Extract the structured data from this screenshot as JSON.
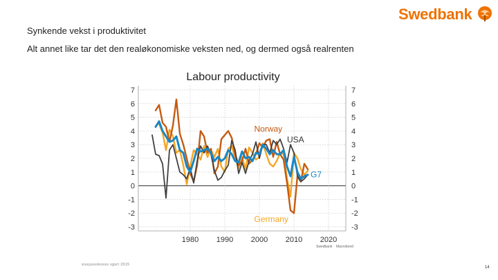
{
  "slide": {
    "title": "Synkende vekst i produktivitet",
    "subtitle": "Alt annet like tar det den realøkonomiske veksten ned, og dermed også realrenten",
    "footer": "sissjsssskssss sgsrt 2015",
    "page_number": "14"
  },
  "logo": {
    "text": "Swedbank",
    "icon": "oak-tree-icon",
    "color": "#ee7203"
  },
  "chart_data": {
    "type": "line",
    "title": "Labour productivity",
    "xlabel": "",
    "ylabel": "",
    "xlim": [
      1965,
      2025
    ],
    "ylim": [
      -3.3,
      7.3
    ],
    "x_ticks": [
      1980,
      1990,
      2000,
      2010,
      2020
    ],
    "y_ticks": [
      7,
      6,
      5,
      4,
      3,
      2,
      1,
      0,
      -1,
      -2,
      -3
    ],
    "grid": true,
    "source": [
      "Swedbank",
      "Macrobond"
    ],
    "series": [
      {
        "name": "Norway",
        "color": "#c55a11",
        "label_position": "middle",
        "points": [
          [
            1970,
            5.5
          ],
          [
            1971,
            5.9
          ],
          [
            1972,
            4.6
          ],
          [
            1973,
            4.3
          ],
          [
            1974,
            3.2
          ],
          [
            1975,
            4.4
          ],
          [
            1976,
            6.3
          ],
          [
            1977,
            3.8
          ],
          [
            1978,
            3.0
          ],
          [
            1979,
            2.0
          ],
          [
            1980,
            0.9
          ],
          [
            1981,
            0.3
          ],
          [
            1982,
            1.5
          ],
          [
            1983,
            4.0
          ],
          [
            1984,
            3.6
          ],
          [
            1985,
            2.4
          ],
          [
            1986,
            2.7
          ],
          [
            1987,
            0.9
          ],
          [
            1988,
            1.4
          ],
          [
            1989,
            3.4
          ],
          [
            1990,
            3.7
          ],
          [
            1991,
            4.0
          ],
          [
            1992,
            3.5
          ],
          [
            1993,
            2.3
          ],
          [
            1994,
            1.5
          ],
          [
            1995,
            1.8
          ],
          [
            1996,
            2.7
          ],
          [
            1997,
            1.6
          ],
          [
            1998,
            1.9
          ],
          [
            1999,
            2.3
          ],
          [
            2000,
            3.1
          ],
          [
            2001,
            2.8
          ],
          [
            2002,
            3.3
          ],
          [
            2003,
            3.4
          ],
          [
            2004,
            2.1
          ],
          [
            2005,
            3.2
          ],
          [
            2006,
            2.3
          ],
          [
            2007,
            1.9
          ],
          [
            2008,
            0.2
          ],
          [
            2009,
            -1.8
          ],
          [
            2010,
            -2.0
          ],
          [
            2011,
            0.7
          ],
          [
            2012,
            0.3
          ],
          [
            2013,
            1.6
          ],
          [
            2014,
            1.2
          ]
        ]
      },
      {
        "name": "USA",
        "color": "#404040",
        "label_position": "middle-right",
        "points": [
          [
            1969,
            3.7
          ],
          [
            1970,
            2.3
          ],
          [
            1971,
            2.2
          ],
          [
            1972,
            1.6
          ],
          [
            1973,
            -0.9
          ],
          [
            1974,
            2.6
          ],
          [
            1975,
            3.0
          ],
          [
            1976,
            2.0
          ],
          [
            1977,
            1.0
          ],
          [
            1978,
            0.8
          ],
          [
            1979,
            0.5
          ],
          [
            1980,
            1.3
          ],
          [
            1981,
            0.2
          ],
          [
            1982,
            1.8
          ],
          [
            1983,
            2.9
          ],
          [
            1984,
            2.4
          ],
          [
            1985,
            2.9
          ],
          [
            1986,
            2.3
          ],
          [
            1987,
            1.1
          ],
          [
            1988,
            0.4
          ],
          [
            1989,
            0.6
          ],
          [
            1990,
            1.1
          ],
          [
            1991,
            1.5
          ],
          [
            1992,
            3.3
          ],
          [
            1993,
            2.6
          ],
          [
            1994,
            0.9
          ],
          [
            1995,
            1.7
          ],
          [
            1996,
            0.9
          ],
          [
            1997,
            1.8
          ],
          [
            1998,
            2.3
          ],
          [
            1999,
            3.2
          ],
          [
            2000,
            2.0
          ],
          [
            2001,
            3.0
          ],
          [
            2002,
            3.0
          ],
          [
            2003,
            2.4
          ],
          [
            2004,
            3.3
          ],
          [
            2005,
            3.0
          ],
          [
            2006,
            3.4
          ],
          [
            2007,
            2.7
          ],
          [
            2008,
            1.7
          ],
          [
            2009,
            3.0
          ],
          [
            2010,
            2.4
          ],
          [
            2011,
            0.7
          ],
          [
            2012,
            0.3
          ],
          [
            2013,
            0.5
          ],
          [
            2014,
            0.8
          ]
        ]
      },
      {
        "name": "Germany",
        "color": "#f5a623",
        "label_position": "bottom",
        "points": [
          [
            1971,
            4.5
          ],
          [
            1972,
            3.9
          ],
          [
            1973,
            2.6
          ],
          [
            1974,
            4.1
          ],
          [
            1975,
            3.6
          ],
          [
            1976,
            2.4
          ],
          [
            1977,
            2.6
          ],
          [
            1978,
            1.5
          ],
          [
            1979,
            0.1
          ],
          [
            1980,
            1.4
          ],
          [
            1981,
            2.6
          ],
          [
            1982,
            2.3
          ],
          [
            1983,
            1.9
          ],
          [
            1984,
            2.9
          ],
          [
            1985,
            2.1
          ],
          [
            1986,
            2.6
          ],
          [
            1987,
            2.1
          ],
          [
            1988,
            2.7
          ],
          [
            1989,
            1.4
          ],
          [
            1990,
            1.0
          ],
          [
            1991,
            2.7
          ],
          [
            1992,
            2.9
          ],
          [
            1993,
            2.0
          ],
          [
            1994,
            1.3
          ],
          [
            1995,
            2.1
          ],
          [
            1996,
            1.2
          ],
          [
            1997,
            2.8
          ],
          [
            1998,
            2.4
          ],
          [
            1999,
            1.9
          ],
          [
            2000,
            2.1
          ],
          [
            2001,
            3.1
          ],
          [
            2002,
            2.3
          ],
          [
            2003,
            1.6
          ],
          [
            2004,
            1.4
          ],
          [
            2005,
            1.8
          ],
          [
            2006,
            2.4
          ],
          [
            2007,
            2.3
          ],
          [
            2008,
            0.5
          ],
          [
            2009,
            -0.8
          ],
          [
            2010,
            2.4
          ],
          [
            2011,
            2.0
          ],
          [
            2012,
            1.2
          ],
          [
            2013,
            0.8
          ],
          [
            2014,
            1.1
          ]
        ]
      },
      {
        "name": "G7",
        "color": "#1a87c4",
        "label_position": "right",
        "points": [
          [
            1970,
            4.3
          ],
          [
            1971,
            4.7
          ],
          [
            1972,
            4.0
          ],
          [
            1973,
            3.6
          ],
          [
            1974,
            3.2
          ],
          [
            1975,
            3.3
          ],
          [
            1976,
            3.6
          ],
          [
            1977,
            2.6
          ],
          [
            1978,
            2.4
          ],
          [
            1979,
            1.4
          ],
          [
            1980,
            1.0
          ],
          [
            1981,
            1.8
          ],
          [
            1982,
            2.7
          ],
          [
            1983,
            2.5
          ],
          [
            1984,
            2.6
          ],
          [
            1985,
            2.7
          ],
          [
            1986,
            2.4
          ],
          [
            1987,
            1.8
          ],
          [
            1988,
            2.1
          ],
          [
            1989,
            1.8
          ],
          [
            1990,
            2.0
          ],
          [
            1991,
            2.6
          ],
          [
            1992,
            2.3
          ],
          [
            1993,
            1.8
          ],
          [
            1994,
            1.7
          ],
          [
            1995,
            2.5
          ],
          [
            1996,
            2.0
          ],
          [
            1997,
            2.1
          ],
          [
            1998,
            1.8
          ],
          [
            1999,
            2.4
          ],
          [
            2000,
            2.3
          ],
          [
            2001,
            3.0
          ],
          [
            2002,
            2.7
          ],
          [
            2003,
            2.3
          ],
          [
            2004,
            2.6
          ],
          [
            2005,
            2.3
          ],
          [
            2006,
            2.3
          ],
          [
            2007,
            2.6
          ],
          [
            2008,
            1.4
          ],
          [
            2009,
            0.7
          ],
          [
            2010,
            2.1
          ],
          [
            2011,
            1.0
          ],
          [
            2012,
            0.5
          ],
          [
            2013,
            0.7
          ],
          [
            2014,
            0.8
          ]
        ]
      }
    ]
  }
}
